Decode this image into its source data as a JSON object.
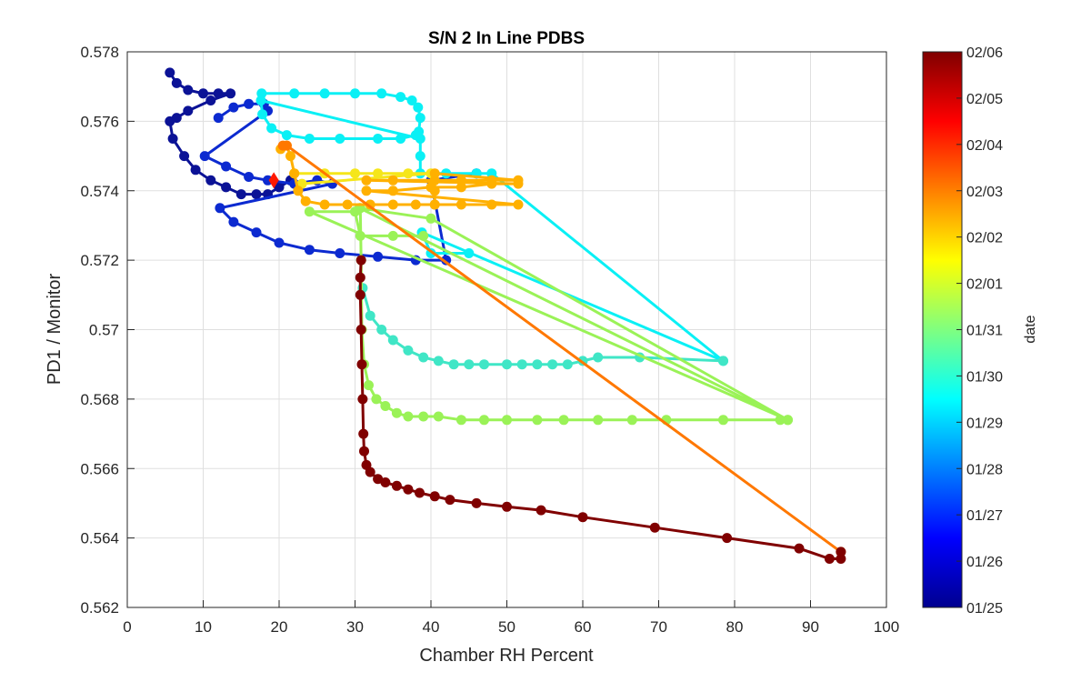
{
  "chart_data": {
    "type": "scatter",
    "title": "S/N 2 In Line PDBS",
    "xlabel": "Chamber RH Percent",
    "ylabel": "PD1 / Monitor",
    "xlim": [
      0,
      100
    ],
    "ylim": [
      0.562,
      0.578
    ],
    "x_ticks": [
      0,
      10,
      20,
      30,
      40,
      50,
      60,
      70,
      80,
      90,
      100
    ],
    "x_tick_labels": [
      "0",
      "10",
      "20",
      "30",
      "40",
      "50",
      "60",
      "70",
      "80",
      "90",
      "100"
    ],
    "y_ticks": [
      0.562,
      0.564,
      0.566,
      0.568,
      0.57,
      0.572,
      0.574,
      0.576,
      0.578
    ],
    "y_tick_labels": [
      "0.562",
      "0.564",
      "0.566",
      "0.568",
      "0.57",
      "0.572",
      "0.574",
      "0.576",
      "0.578"
    ],
    "grid": true,
    "colormap": "jet",
    "colorbar": {
      "label": "date",
      "range": [
        "01/25",
        "02/06"
      ],
      "tick_labels": [
        "01/25",
        "01/26",
        "01/27",
        "01/28",
        "01/29",
        "01/30",
        "01/31",
        "02/01",
        "02/02",
        "02/03",
        "02/04",
        "02/05",
        "02/06"
      ]
    },
    "series": [
      {
        "color": "#0b1296",
        "marker": "*",
        "points": [
          [
            5.6,
            0.5774
          ],
          [
            6.5,
            0.5771
          ],
          [
            8,
            0.5769
          ],
          [
            10,
            0.5768
          ],
          [
            12,
            0.5768
          ],
          [
            13.6,
            0.5768
          ],
          [
            11,
            0.5766
          ],
          [
            8,
            0.5763
          ],
          [
            6.5,
            0.5761
          ],
          [
            5.6,
            0.576
          ],
          [
            6,
            0.5755
          ],
          [
            7.5,
            0.575
          ],
          [
            9,
            0.5746
          ],
          [
            11,
            0.5743
          ],
          [
            13,
            0.5741
          ],
          [
            15,
            0.5739
          ],
          [
            17,
            0.5739
          ],
          [
            18.5,
            0.5739
          ],
          [
            20,
            0.5741
          ],
          [
            21.5,
            0.5743
          ]
        ]
      },
      {
        "color": "#0c2ad0",
        "marker": "*",
        "points": [
          [
            12,
            0.5761
          ],
          [
            14,
            0.5764
          ],
          [
            16,
            0.5765
          ],
          [
            18,
            0.5765
          ],
          [
            18.5,
            0.5763
          ],
          [
            10.2,
            0.575
          ],
          [
            13,
            0.5747
          ],
          [
            16,
            0.5744
          ],
          [
            18.5,
            0.5743
          ],
          [
            22,
            0.5742
          ],
          [
            25,
            0.5743
          ],
          [
            27,
            0.5742
          ],
          [
            12.2,
            0.5735
          ],
          [
            14,
            0.5731
          ],
          [
            17,
            0.5728
          ],
          [
            20,
            0.5725
          ],
          [
            24,
            0.5723
          ],
          [
            28,
            0.5722
          ],
          [
            33,
            0.5721
          ],
          [
            38,
            0.572
          ],
          [
            42,
            0.572
          ],
          [
            40,
            0.5743
          ],
          [
            46,
            0.5745
          ]
        ]
      },
      {
        "color": "#0af0f5",
        "marker": "*",
        "points": [
          [
            17.7,
            0.5768
          ],
          [
            22,
            0.5768
          ],
          [
            26,
            0.5768
          ],
          [
            30,
            0.5768
          ],
          [
            33.5,
            0.5768
          ],
          [
            36,
            0.5767
          ],
          [
            37.5,
            0.5766
          ],
          [
            38.3,
            0.5764
          ],
          [
            38.6,
            0.5761
          ],
          [
            38.4,
            0.5757
          ],
          [
            38,
            0.5756
          ],
          [
            36,
            0.5755
          ],
          [
            33,
            0.5755
          ],
          [
            28,
            0.5755
          ],
          [
            24,
            0.5755
          ],
          [
            21,
            0.5756
          ],
          [
            19,
            0.5758
          ],
          [
            17.8,
            0.5762
          ],
          [
            17.6,
            0.5766
          ],
          [
            38.6,
            0.5755
          ],
          [
            38.6,
            0.575
          ],
          [
            38.6,
            0.5745
          ],
          [
            42,
            0.5745
          ],
          [
            46,
            0.5745
          ],
          [
            48,
            0.5745
          ],
          [
            78.5,
            0.5691
          ],
          [
            38.8,
            0.5728
          ],
          [
            40,
            0.5722
          ],
          [
            45,
            0.5722
          ]
        ]
      },
      {
        "color": "#40e6c6",
        "marker": "*",
        "points": [
          [
            31,
            0.5712
          ],
          [
            32,
            0.5704
          ],
          [
            33.5,
            0.57
          ],
          [
            35,
            0.5697
          ],
          [
            37,
            0.5694
          ],
          [
            39,
            0.5692
          ],
          [
            41,
            0.5691
          ],
          [
            43,
            0.569
          ],
          [
            45,
            0.569
          ],
          [
            47,
            0.569
          ],
          [
            50,
            0.569
          ],
          [
            52,
            0.569
          ],
          [
            54,
            0.569
          ],
          [
            56,
            0.569
          ],
          [
            58,
            0.569
          ],
          [
            60,
            0.5691
          ],
          [
            62,
            0.5692
          ],
          [
            67.5,
            0.5692
          ],
          [
            78.5,
            0.5691
          ]
        ]
      },
      {
        "color": "#9af257",
        "marker": "*",
        "points": [
          [
            30.7,
            0.5735
          ],
          [
            30.8,
            0.572
          ],
          [
            30.9,
            0.57
          ],
          [
            31.2,
            0.569
          ],
          [
            31.8,
            0.5684
          ],
          [
            32.8,
            0.568
          ],
          [
            34,
            0.5678
          ],
          [
            35.5,
            0.5676
          ],
          [
            37,
            0.5675
          ],
          [
            39,
            0.5675
          ],
          [
            41,
            0.5675
          ],
          [
            44,
            0.5674
          ],
          [
            47,
            0.5674
          ],
          [
            50,
            0.5674
          ],
          [
            54,
            0.5674
          ],
          [
            57.5,
            0.5674
          ],
          [
            62,
            0.5674
          ],
          [
            66.5,
            0.5674
          ],
          [
            71,
            0.5674
          ],
          [
            78.5,
            0.5674
          ],
          [
            86,
            0.5674
          ],
          [
            87,
            0.5674
          ],
          [
            30.6,
            0.5735
          ],
          [
            40,
            0.5732
          ],
          [
            87,
            0.5674
          ],
          [
            24,
            0.5734
          ],
          [
            30,
            0.5734
          ],
          [
            30.7,
            0.5727
          ],
          [
            35,
            0.5727
          ],
          [
            39,
            0.5727
          ]
        ]
      },
      {
        "color": "#f5e61a",
        "marker": "*",
        "points": [
          [
            22,
            0.5745
          ],
          [
            26,
            0.5745
          ],
          [
            30,
            0.5745
          ],
          [
            33,
            0.5745
          ],
          [
            37,
            0.5745
          ],
          [
            40,
            0.5745
          ],
          [
            23,
            0.5742
          ]
        ]
      },
      {
        "color": "#ffb000",
        "marker": "*",
        "points": [
          [
            20.2,
            0.5752
          ],
          [
            21,
            0.5753
          ],
          [
            21.5,
            0.575
          ],
          [
            22,
            0.5745
          ],
          [
            22.5,
            0.574
          ],
          [
            23.5,
            0.5737
          ],
          [
            26,
            0.5736
          ],
          [
            29,
            0.5736
          ],
          [
            32,
            0.5736
          ],
          [
            35,
            0.5736
          ],
          [
            38,
            0.5736
          ],
          [
            40.5,
            0.5736
          ],
          [
            44,
            0.5736
          ],
          [
            48,
            0.5736
          ],
          [
            51.5,
            0.5736
          ],
          [
            31.5,
            0.574
          ],
          [
            35,
            0.574
          ],
          [
            40,
            0.5741
          ],
          [
            44,
            0.5741
          ],
          [
            48,
            0.5742
          ],
          [
            51.5,
            0.5742
          ],
          [
            31.5,
            0.5743
          ],
          [
            35,
            0.5743
          ],
          [
            40.5,
            0.5743
          ],
          [
            44,
            0.5743
          ],
          [
            48,
            0.5743
          ],
          [
            51.5,
            0.5743
          ],
          [
            40.5,
            0.5745
          ],
          [
            40.5,
            0.574
          ],
          [
            40.5,
            0.5736
          ]
        ]
      },
      {
        "color": "#ff7800",
        "marker": "*",
        "points": [
          [
            20.5,
            0.5753
          ],
          [
            21,
            0.5753
          ],
          [
            94,
            0.5636
          ]
        ]
      },
      {
        "color": "#ff1800",
        "marker": "diamond",
        "points": [
          [
            19.3,
            0.5743
          ]
        ]
      },
      {
        "color": "#800000",
        "marker": "*",
        "points": [
          [
            30.8,
            0.572
          ],
          [
            30.7,
            0.5715
          ],
          [
            30.7,
            0.571
          ],
          [
            30.8,
            0.57
          ],
          [
            30.9,
            0.569
          ],
          [
            31,
            0.568
          ],
          [
            31.1,
            0.567
          ],
          [
            31.2,
            0.5665
          ],
          [
            31.5,
            0.5661
          ],
          [
            32,
            0.5659
          ],
          [
            33,
            0.5657
          ],
          [
            34,
            0.5656
          ],
          [
            35.5,
            0.5655
          ],
          [
            37,
            0.5654
          ],
          [
            38.5,
            0.5653
          ],
          [
            40.5,
            0.5652
          ],
          [
            42.5,
            0.5651
          ],
          [
            46,
            0.565
          ],
          [
            50,
            0.5649
          ],
          [
            54.5,
            0.5648
          ],
          [
            60,
            0.5646
          ],
          [
            69.5,
            0.5643
          ],
          [
            79,
            0.564
          ],
          [
            88.5,
            0.5637
          ],
          [
            92.5,
            0.5634
          ],
          [
            94,
            0.5634
          ],
          [
            94,
            0.5636
          ]
        ]
      }
    ]
  }
}
